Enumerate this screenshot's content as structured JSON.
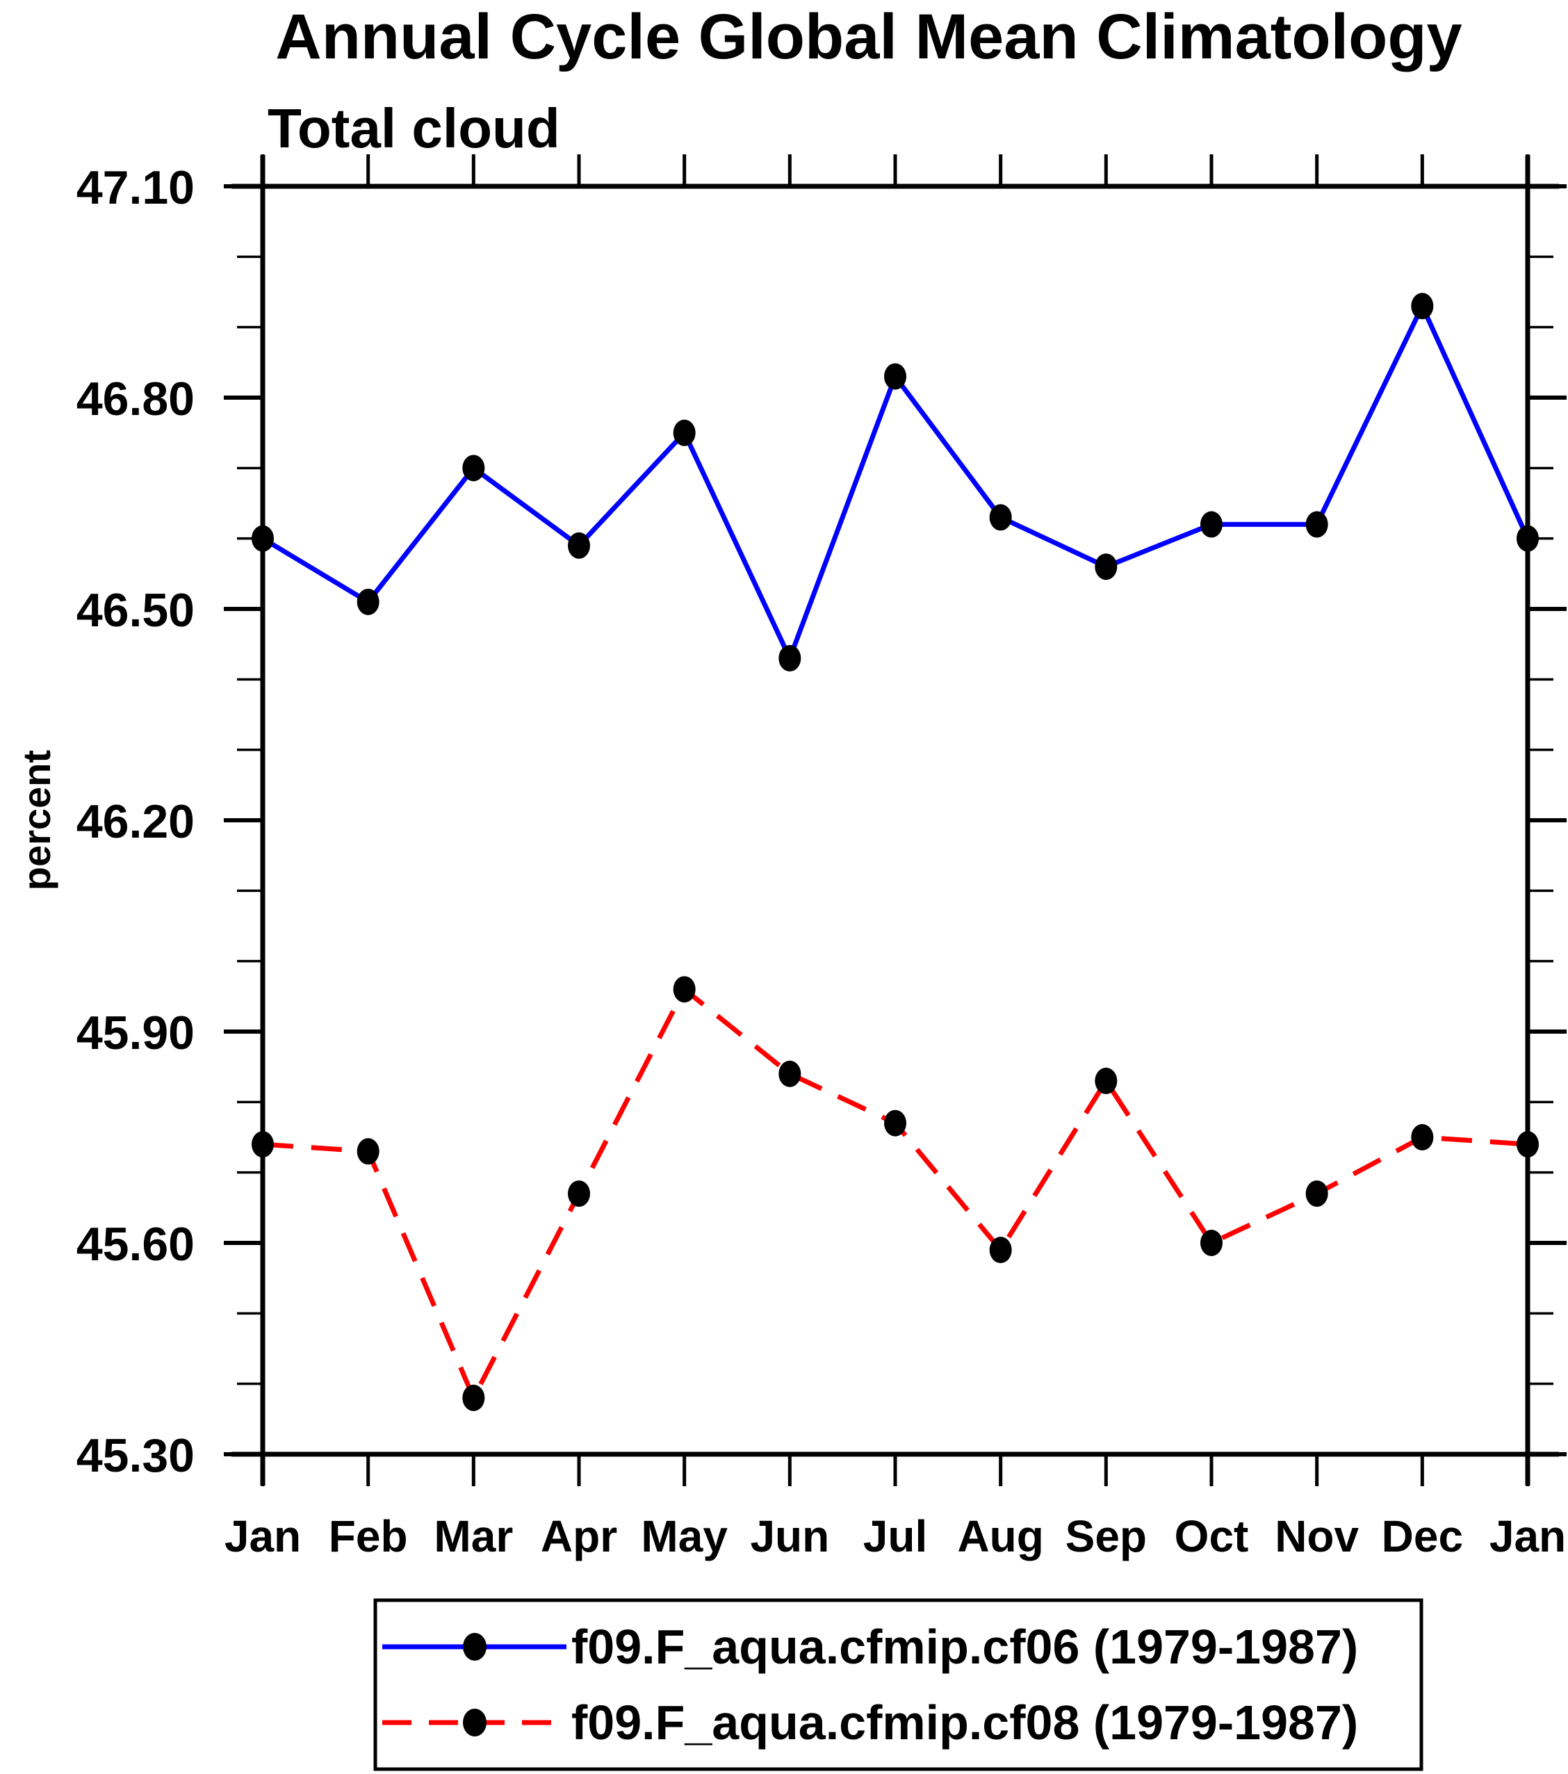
{
  "chart_data": {
    "type": "line",
    "title": "Annual Cycle Global Mean Climatology",
    "subtitle": "Total cloud",
    "ylabel": "percent",
    "categories": [
      "Jan",
      "Feb",
      "Mar",
      "Apr",
      "May",
      "Jun",
      "Jul",
      "Aug",
      "Sep",
      "Oct",
      "Nov",
      "Dec",
      "Jan"
    ],
    "series": [
      {
        "name": "f09.F_aqua.cfmip.cf06 (1979-1987)",
        "color": "#0000ff",
        "line_style": "solid",
        "marker": "filled-circle",
        "marker_color": "#000000",
        "values": [
          46.6,
          46.51,
          46.7,
          46.59,
          46.75,
          46.43,
          46.83,
          46.63,
          46.56,
          46.62,
          46.62,
          46.93,
          46.6
        ]
      },
      {
        "name": "f09.F_aqua.cfmip.cf08 (1979-1987)",
        "color": "#ff0000",
        "line_style": "dashed",
        "marker": "filled-circle",
        "marker_color": "#000000",
        "values": [
          45.74,
          45.73,
          45.38,
          45.67,
          45.96,
          45.84,
          45.77,
          45.59,
          45.83,
          45.6,
          45.67,
          45.75,
          45.74
        ]
      }
    ],
    "ylim": [
      45.3,
      47.1
    ],
    "ytick_major_interval": 0.3,
    "ytick_minor_interval": 0.1,
    "ytick_labels": [
      "47.10",
      "46.80",
      "46.50",
      "46.20",
      "45.90",
      "45.60",
      "45.30"
    ],
    "grid": false,
    "legend_position": "bottom",
    "axis_color": "#000000",
    "background_color": "#ffffff"
  }
}
